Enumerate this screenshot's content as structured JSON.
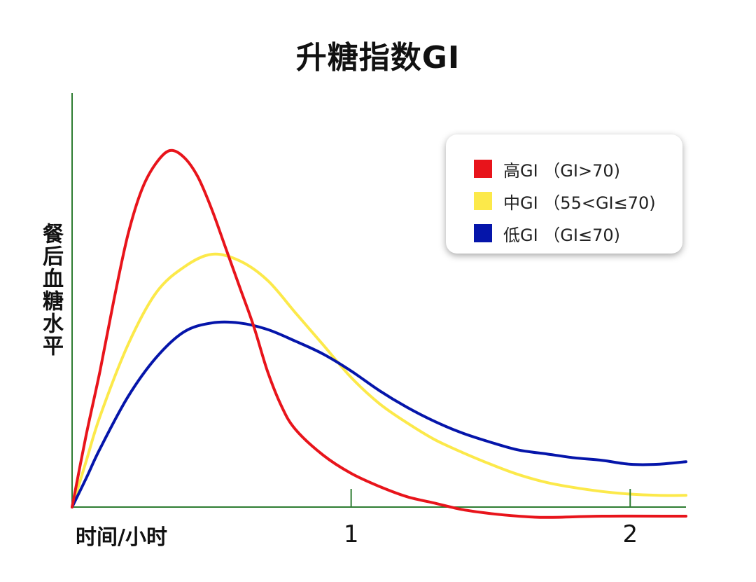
{
  "chart_data": {
    "type": "line",
    "title": "升糖指数GI",
    "xlabel": "时间/小时",
    "ylabel": "餐后血糖水平",
    "xlim": [
      0,
      2.2
    ],
    "ylim": [
      -0.1,
      3.0
    ],
    "x_ticks": [
      {
        "value": 1,
        "label": "1"
      },
      {
        "value": 2,
        "label": "2"
      }
    ],
    "grid": false,
    "legend_position": "top-right",
    "series": [
      {
        "name": "高GI （GI>70)",
        "color": "#e8141b",
        "points": [
          [
            0,
            0
          ],
          [
            0.05,
            0.55
          ],
          [
            0.1,
            1.05
          ],
          [
            0.15,
            1.6
          ],
          [
            0.2,
            2.1
          ],
          [
            0.25,
            2.45
          ],
          [
            0.3,
            2.65
          ],
          [
            0.35,
            2.75
          ],
          [
            0.4,
            2.7
          ],
          [
            0.45,
            2.55
          ],
          [
            0.5,
            2.3
          ],
          [
            0.55,
            2.0
          ],
          [
            0.6,
            1.7
          ],
          [
            0.65,
            1.4
          ],
          [
            0.7,
            1.05
          ],
          [
            0.75,
            0.78
          ],
          [
            0.8,
            0.6
          ],
          [
            0.9,
            0.4
          ],
          [
            1.0,
            0.26
          ],
          [
            1.1,
            0.16
          ],
          [
            1.2,
            0.08
          ],
          [
            1.3,
            0.03
          ],
          [
            1.4,
            -0.02
          ],
          [
            1.5,
            -0.05
          ],
          [
            1.6,
            -0.07
          ],
          [
            1.7,
            -0.08
          ],
          [
            1.9,
            -0.07
          ],
          [
            2.2,
            -0.07
          ]
        ]
      },
      {
        "name": "中GI （55<GI≤70)",
        "color": "#fce94a",
        "points": [
          [
            0,
            0
          ],
          [
            0.05,
            0.35
          ],
          [
            0.1,
            0.7
          ],
          [
            0.2,
            1.25
          ],
          [
            0.3,
            1.65
          ],
          [
            0.4,
            1.85
          ],
          [
            0.5,
            1.95
          ],
          [
            0.6,
            1.9
          ],
          [
            0.7,
            1.75
          ],
          [
            0.8,
            1.5
          ],
          [
            0.9,
            1.25
          ],
          [
            1.0,
            1.0
          ],
          [
            1.1,
            0.8
          ],
          [
            1.2,
            0.65
          ],
          [
            1.3,
            0.52
          ],
          [
            1.4,
            0.42
          ],
          [
            1.5,
            0.33
          ],
          [
            1.6,
            0.25
          ],
          [
            1.7,
            0.19
          ],
          [
            1.8,
            0.15
          ],
          [
            1.9,
            0.12
          ],
          [
            2.0,
            0.1
          ],
          [
            2.1,
            0.09
          ],
          [
            2.2,
            0.09
          ]
        ]
      },
      {
        "name": "低GI （GI≤70)",
        "color": "#0515aa",
        "points": [
          [
            0,
            0
          ],
          [
            0.05,
            0.22
          ],
          [
            0.1,
            0.45
          ],
          [
            0.2,
            0.85
          ],
          [
            0.3,
            1.15
          ],
          [
            0.4,
            1.35
          ],
          [
            0.5,
            1.42
          ],
          [
            0.6,
            1.42
          ],
          [
            0.7,
            1.37
          ],
          [
            0.8,
            1.28
          ],
          [
            0.9,
            1.18
          ],
          [
            1.0,
            1.05
          ],
          [
            1.1,
            0.9
          ],
          [
            1.2,
            0.77
          ],
          [
            1.3,
            0.66
          ],
          [
            1.4,
            0.57
          ],
          [
            1.5,
            0.5
          ],
          [
            1.6,
            0.44
          ],
          [
            1.7,
            0.41
          ],
          [
            1.8,
            0.38
          ],
          [
            1.9,
            0.36
          ],
          [
            2.0,
            0.33
          ],
          [
            2.1,
            0.33
          ],
          [
            2.2,
            0.35
          ]
        ]
      }
    ]
  },
  "colors": {
    "axis": "#2e7d32",
    "text": "#111111"
  }
}
